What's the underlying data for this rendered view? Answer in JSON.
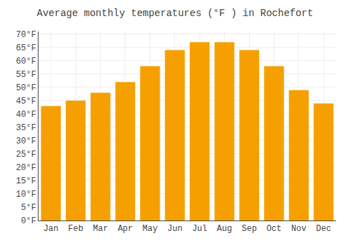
{
  "chart_data": {
    "type": "bar",
    "title": "Average monthly temperatures (°F ) in Rochefort",
    "categories": [
      "Jan",
      "Feb",
      "Mar",
      "Apr",
      "May",
      "Jun",
      "Jul",
      "Aug",
      "Sep",
      "Oct",
      "Nov",
      "Dec"
    ],
    "values": [
      43,
      45,
      48,
      52,
      58,
      64,
      67,
      67,
      64,
      58,
      49,
      44
    ],
    "color": "#F5A000",
    "ylim": [
      0,
      71
    ],
    "yticks": [
      {
        "value": 0,
        "label": "0°F"
      },
      {
        "value": 5,
        "label": "5°F"
      },
      {
        "value": 10,
        "label": "10°F"
      },
      {
        "value": 15,
        "label": "15°F"
      },
      {
        "value": 20,
        "label": "20°F"
      },
      {
        "value": 25,
        "label": "25°F"
      },
      {
        "value": 30,
        "label": "30°F"
      },
      {
        "value": 35,
        "label": "35°F"
      },
      {
        "value": 40,
        "label": "40°F"
      },
      {
        "value": 45,
        "label": "45°F"
      },
      {
        "value": 50,
        "label": "50°F"
      },
      {
        "value": 55,
        "label": "55°F"
      },
      {
        "value": 60,
        "label": "60°F"
      },
      {
        "value": 65,
        "label": "65°F"
      },
      {
        "value": 70,
        "label": "70°F"
      }
    ],
    "grid": true
  }
}
